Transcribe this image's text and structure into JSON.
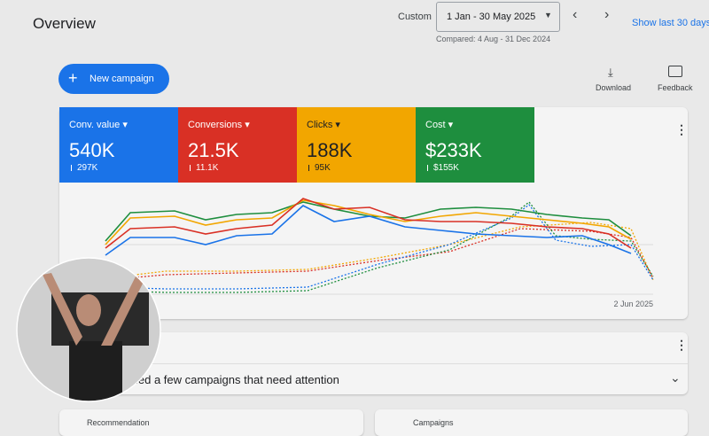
{
  "header": {
    "title": "Overview",
    "range_label": "Custom",
    "date_range": "1 Jan - 30 May 2025",
    "compared": "Compared: 4 Aug - 31 Dec 2024",
    "show_last": "Show last 30 days"
  },
  "toolbar": {
    "new_campaign": "New campaign",
    "download": "Download",
    "feedback": "Feedback"
  },
  "metrics": [
    {
      "label": "Conv. value",
      "value": "540K",
      "previous": "297K"
    },
    {
      "label": "Conversions",
      "value": "21.5K",
      "previous": "11.1K"
    },
    {
      "label": "Clicks",
      "value": "188K",
      "previous": "95K"
    },
    {
      "label": "Cost",
      "value": "$233K",
      "previous": "$155K"
    }
  ],
  "chart": {
    "x_label": "2 Jun 2025"
  },
  "attention": {
    "text": "ied a few campaigns that need attention"
  },
  "bottom_cards": [
    "Recommendation",
    "Campaigns"
  ]
}
